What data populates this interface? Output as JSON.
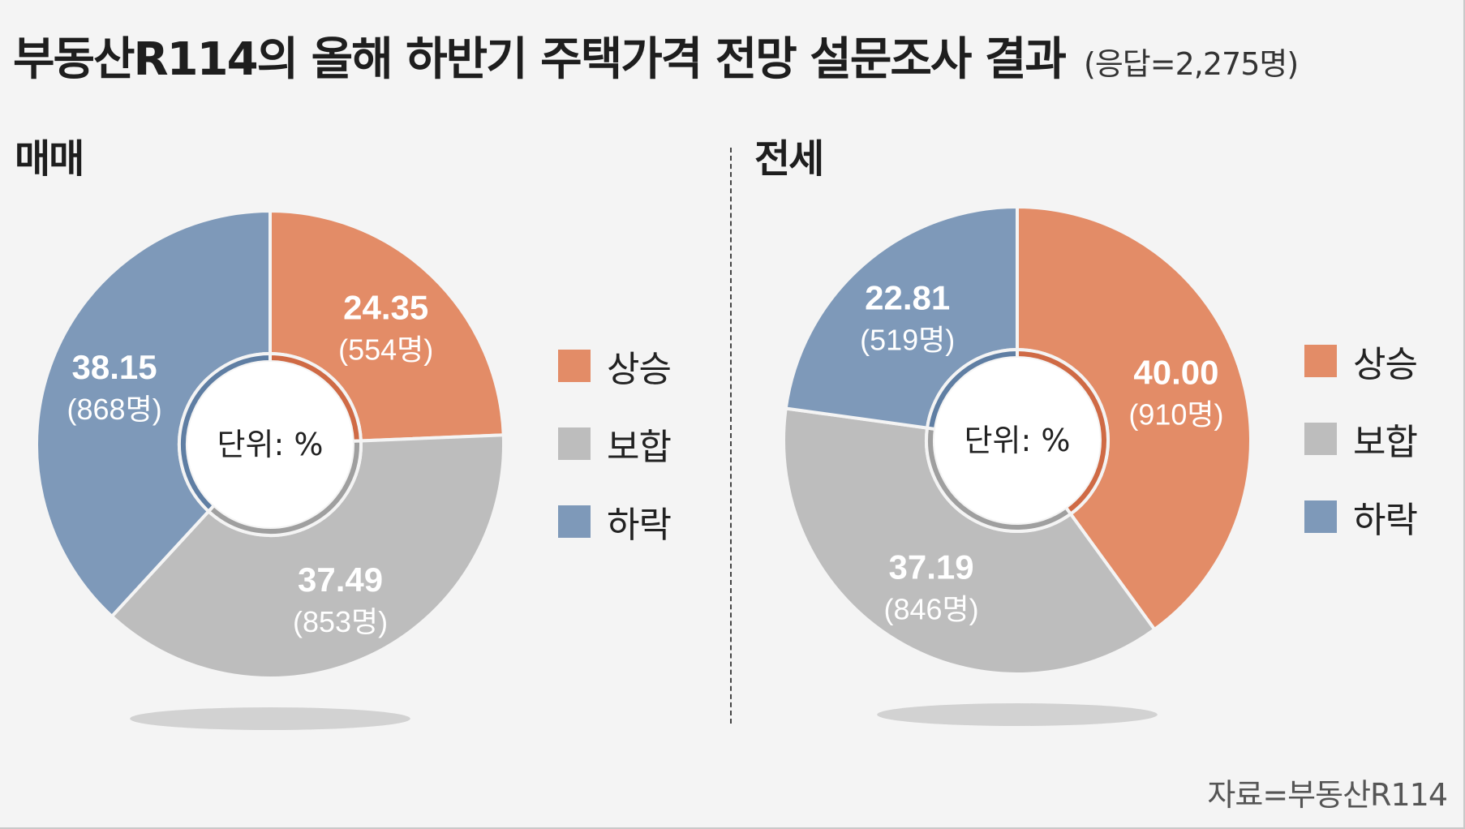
{
  "title": "부동산R114의 올해 하반기 주택가격 전망 설문조사 결과",
  "subtitle": "(응답=2,275명)",
  "source": "자료=부동산R114",
  "colors": {
    "rise": "#e38c67",
    "hold": "#bdbdbd",
    "fall": "#7e99b9",
    "rise_inner": "#cf6a45",
    "hold_inner": "#9f9f9f",
    "fall_inner": "#5f7ea3",
    "shadow": "#d2d2d2"
  },
  "legend": {
    "items": [
      {
        "key": "rise",
        "label": "상승"
      },
      {
        "key": "hold",
        "label": "보합"
      },
      {
        "key": "fall",
        "label": "하락"
      }
    ]
  },
  "chart_data": [
    {
      "type": "pie",
      "title": "매매",
      "unit_label": "단위: %",
      "categories": [
        "상승",
        "보합",
        "하락"
      ],
      "values": [
        24.35,
        37.49,
        38.15
      ],
      "labels": [
        "24.35",
        "37.49",
        "38.15"
      ],
      "counts": [
        "(554명)",
        "(853명)",
        "(868명)"
      ]
    },
    {
      "type": "pie",
      "title": "전세",
      "unit_label": "단위: %",
      "categories": [
        "상승",
        "보합",
        "하락"
      ],
      "values": [
        40.0,
        37.19,
        22.81
      ],
      "labels": [
        "40.00",
        "37.19",
        "22.81"
      ],
      "counts": [
        "(910명)",
        "(846명)",
        "(519명)"
      ]
    }
  ]
}
